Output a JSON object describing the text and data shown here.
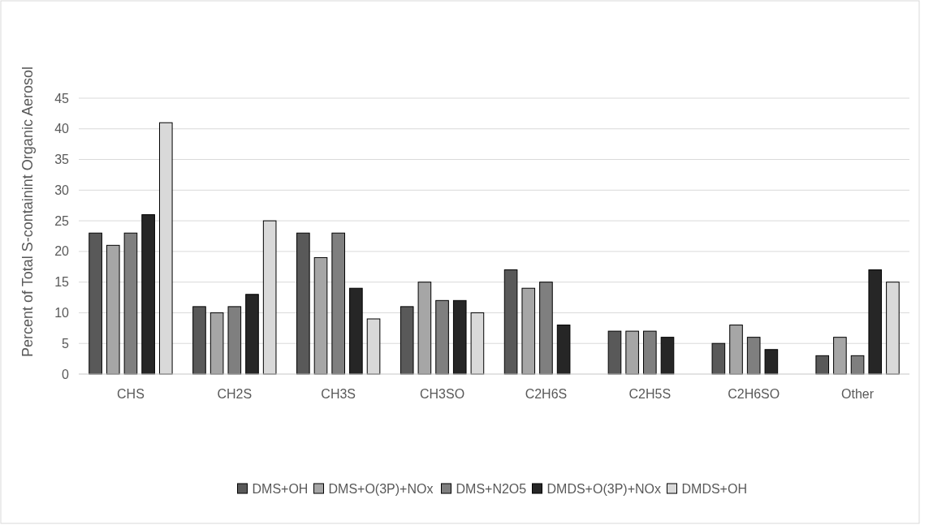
{
  "chart_data": {
    "type": "bar",
    "ylabel": "Percent of Total S-containint Organic Aerosol",
    "categories": [
      "CHS",
      "CH2S",
      "CH3S",
      "CH3SO",
      "C2H6S",
      "C2H5S",
      "C2H6SO",
      "Other"
    ],
    "series": [
      {
        "name": "DMS+OH",
        "color": "#595959",
        "values": [
          23,
          11,
          23,
          11,
          17,
          7,
          5,
          3
        ]
      },
      {
        "name": "DMS+O(3P)+NOx",
        "color": "#a6a6a6",
        "values": [
          21,
          10,
          19,
          15,
          14,
          7,
          8,
          6
        ]
      },
      {
        "name": "DMS+N2O5",
        "color": "#7f7f7f",
        "values": [
          23,
          11,
          23,
          12,
          15,
          7,
          6,
          3
        ]
      },
      {
        "name": "DMDS+O(3P)+NOx",
        "color": "#262626",
        "values": [
          26,
          13,
          14,
          12,
          8,
          6,
          4,
          17
        ]
      },
      {
        "name": "DMDS+OH",
        "color": "#d9d9d9",
        "values": [
          41,
          25,
          9,
          10,
          null,
          null,
          null,
          15
        ]
      }
    ],
    "ylim": [
      0,
      45
    ],
    "yticks": [
      0,
      5,
      10,
      15,
      20,
      25,
      30,
      35,
      40,
      45
    ],
    "grid": "y",
    "legend": "bottom"
  }
}
